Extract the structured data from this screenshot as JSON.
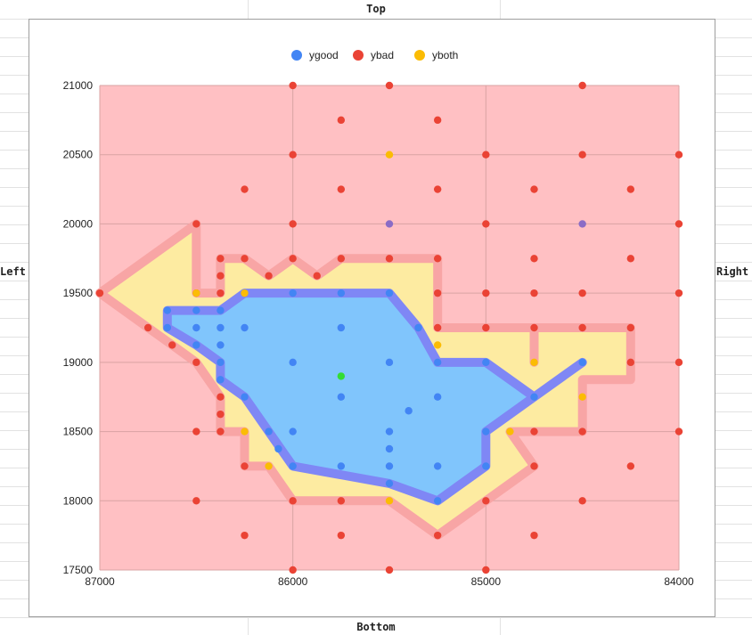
{
  "frame": {
    "top_label": "Top",
    "bottom_label": "Bottom",
    "left_label": "Left",
    "right_label": "Right"
  },
  "colors": {
    "good": "#4285f4",
    "bad": "#ea4335",
    "both": "#fbbc04",
    "bad_fill": "#ffc0c3",
    "both_fill": "#fdeba1",
    "good_fill": "#80c5fc",
    "bad_outline": "#f8a5a5",
    "good_outline": "#7f87f5",
    "special_green": "#33dd33",
    "special_purple": "#8a6cc6"
  },
  "chart_data": {
    "type": "scatter",
    "title": "",
    "xlabel": "",
    "ylabel": "",
    "xlim": [
      87000,
      84000
    ],
    "ylim": [
      17500,
      21000
    ],
    "x_reversed": true,
    "grid": true,
    "legend_position": "top",
    "xticks": [
      "87000",
      "86000",
      "85000",
      "84000"
    ],
    "yticks": [
      "17500",
      "18000",
      "18500",
      "19000",
      "19500",
      "20000",
      "20500",
      "21000"
    ],
    "legend": [
      "ygood",
      "ybad",
      "yboth"
    ],
    "series": [
      {
        "name": "ygood",
        "points": [
          [
            86650,
            19375
          ],
          [
            86500,
            19375
          ],
          [
            86375,
            19375
          ],
          [
            86650,
            19250
          ],
          [
            86500,
            19250
          ],
          [
            86375,
            19250
          ],
          [
            86250,
            19250
          ],
          [
            86500,
            19125
          ],
          [
            86375,
            19125
          ],
          [
            86375,
            19000
          ],
          [
            86375,
            18875
          ],
          [
            86250,
            19500
          ],
          [
            86000,
            19500
          ],
          [
            85750,
            19500
          ],
          [
            85500,
            19500
          ],
          [
            85750,
            19250
          ],
          [
            85350,
            19250
          ],
          [
            86000,
            19000
          ],
          [
            85500,
            19000
          ],
          [
            85250,
            19000
          ],
          [
            85000,
            19000
          ],
          [
            85750,
            18750
          ],
          [
            85250,
            18750
          ],
          [
            85400,
            18650
          ],
          [
            86250,
            18750
          ],
          [
            86125,
            18500
          ],
          [
            86000,
            18500
          ],
          [
            85500,
            18500
          ],
          [
            86075,
            18375
          ],
          [
            85500,
            18375
          ],
          [
            86000,
            18250
          ],
          [
            85750,
            18250
          ],
          [
            85500,
            18250
          ],
          [
            85250,
            18250
          ],
          [
            85000,
            18250
          ],
          [
            85500,
            18125
          ],
          [
            85250,
            18000
          ],
          [
            85000,
            18500
          ],
          [
            84750,
            18750
          ],
          [
            84500,
            19000
          ]
        ]
      },
      {
        "name": "ybad",
        "points": [
          [
            86000,
            21000
          ],
          [
            85500,
            21000
          ],
          [
            84500,
            21000
          ],
          [
            85750,
            20750
          ],
          [
            85250,
            20750
          ],
          [
            86000,
            20500
          ],
          [
            85000,
            20500
          ],
          [
            84500,
            20500
          ],
          [
            84000,
            20500
          ],
          [
            86250,
            20250
          ],
          [
            85750,
            20250
          ],
          [
            85250,
            20250
          ],
          [
            84750,
            20250
          ],
          [
            84250,
            20250
          ],
          [
            86500,
            20000
          ],
          [
            86000,
            20000
          ],
          [
            85000,
            20000
          ],
          [
            84000,
            20000
          ],
          [
            86375,
            19750
          ],
          [
            86250,
            19750
          ],
          [
            86000,
            19750
          ],
          [
            85750,
            19750
          ],
          [
            85500,
            19750
          ],
          [
            85250,
            19750
          ],
          [
            84750,
            19750
          ],
          [
            84250,
            19750
          ],
          [
            86375,
            19625
          ],
          [
            86125,
            19625
          ],
          [
            85875,
            19625
          ],
          [
            87000,
            19500
          ],
          [
            86500,
            19500
          ],
          [
            86375,
            19500
          ],
          [
            85250,
            19500
          ],
          [
            85000,
            19500
          ],
          [
            84750,
            19500
          ],
          [
            84500,
            19500
          ],
          [
            84000,
            19500
          ],
          [
            86750,
            19250
          ],
          [
            85250,
            19250
          ],
          [
            85000,
            19250
          ],
          [
            84750,
            19250
          ],
          [
            84500,
            19250
          ],
          [
            84250,
            19250
          ],
          [
            86625,
            19125
          ],
          [
            86500,
            19000
          ],
          [
            84250,
            19000
          ],
          [
            84000,
            19000
          ],
          [
            86375,
            18750
          ],
          [
            86375,
            18625
          ],
          [
            86500,
            18500
          ],
          [
            86375,
            18500
          ],
          [
            84750,
            18500
          ],
          [
            84500,
            18500
          ],
          [
            84000,
            18500
          ],
          [
            86250,
            18250
          ],
          [
            84750,
            18250
          ],
          [
            84250,
            18250
          ],
          [
            86500,
            18000
          ],
          [
            86000,
            18000
          ],
          [
            85750,
            18000
          ],
          [
            85000,
            18000
          ],
          [
            84500,
            18000
          ],
          [
            86250,
            17750
          ],
          [
            85750,
            17750
          ],
          [
            85250,
            17750
          ],
          [
            84750,
            17750
          ],
          [
            86000,
            17500
          ],
          [
            85500,
            17500
          ],
          [
            85000,
            17500
          ]
        ]
      },
      {
        "name": "yboth",
        "points": [
          [
            85500,
            20500
          ],
          [
            86500,
            19500
          ],
          [
            86250,
            19500
          ],
          [
            85250,
            19125
          ],
          [
            84750,
            19000
          ],
          [
            84500,
            18750
          ],
          [
            86250,
            18500
          ],
          [
            84875,
            18500
          ],
          [
            86125,
            18250
          ],
          [
            85500,
            18000
          ]
        ]
      },
      {
        "name": "special",
        "points": [
          [
            85750,
            18900,
            "green"
          ],
          [
            85500,
            20000,
            "purple"
          ],
          [
            84500,
            20000,
            "purple"
          ]
        ]
      }
    ],
    "regions": {
      "bad_polygon": [
        [
          87000,
          19500
        ],
        [
          86500,
          20000
        ],
        [
          86500,
          19500
        ],
        [
          86375,
          19500
        ],
        [
          86375,
          19750
        ],
        [
          86250,
          19750
        ],
        [
          86125,
          19625
        ],
        [
          86000,
          19750
        ],
        [
          85875,
          19625
        ],
        [
          85750,
          19750
        ],
        [
          85250,
          19750
        ],
        [
          85250,
          19250
        ],
        [
          84750,
          19250
        ],
        [
          84750,
          19000
        ],
        [
          84750,
          19250
        ],
        [
          84250,
          19250
        ],
        [
          84250,
          18875
        ],
        [
          84500,
          18875
        ],
        [
          84500,
          18500
        ],
        [
          84875,
          18500
        ],
        [
          84750,
          18250
        ],
        [
          85250,
          17750
        ],
        [
          85500,
          18000
        ],
        [
          86000,
          18000
        ],
        [
          86125,
          18250
        ],
        [
          86250,
          18250
        ],
        [
          86250,
          18500
        ],
        [
          86375,
          18500
        ],
        [
          86375,
          18750
        ],
        [
          86500,
          19000
        ],
        [
          86625,
          19125
        ],
        [
          86750,
          19250
        ],
        [
          87000,
          19500
        ]
      ],
      "good_polygon": [
        [
          86650,
          19375
        ],
        [
          86375,
          19375
        ],
        [
          86375,
          19375
        ],
        [
          86250,
          19500
        ],
        [
          85500,
          19500
        ],
        [
          85350,
          19250
        ],
        [
          85250,
          19000
        ],
        [
          85000,
          19000
        ],
        [
          84750,
          18750
        ],
        [
          84500,
          19000
        ],
        [
          84750,
          18750
        ],
        [
          85000,
          18500
        ],
        [
          85000,
          18250
        ],
        [
          85250,
          18000
        ],
        [
          85500,
          18125
        ],
        [
          86000,
          18250
        ],
        [
          86125,
          18500
        ],
        [
          86250,
          18750
        ],
        [
          86375,
          18875
        ],
        [
          86375,
          19000
        ],
        [
          86500,
          19125
        ],
        [
          86650,
          19250
        ],
        [
          86650,
          19375
        ]
      ]
    }
  }
}
